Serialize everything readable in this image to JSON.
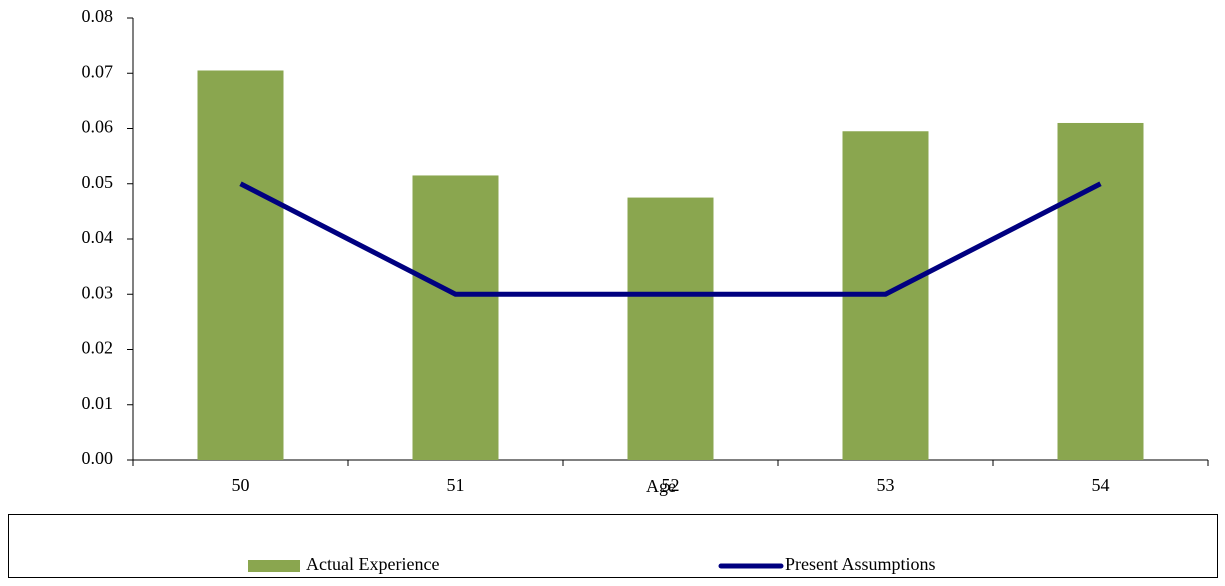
{
  "chart_data": {
    "type": "bar",
    "x_label": "Age",
    "categories": [
      "50",
      "51",
      "52",
      "53",
      "54"
    ],
    "series": [
      {
        "name": "Actual Experience",
        "type": "bar",
        "color": "#8aa64f",
        "values": [
          0.0705,
          0.0515,
          0.0475,
          0.0595,
          0.061
        ]
      },
      {
        "name": "Present Assumptions",
        "type": "line",
        "color": "#000080",
        "values": [
          0.05,
          0.03,
          0.03,
          0.03,
          0.05
        ]
      }
    ],
    "ylim": [
      0,
      0.08
    ],
    "yticks": [
      {
        "value": 0,
        "label": "0.00"
      },
      0.01,
      0.02,
      0.03,
      0.04,
      0.05,
      0.06,
      0.07,
      0.08
    ],
    "grid": false,
    "legend": "bottom"
  }
}
